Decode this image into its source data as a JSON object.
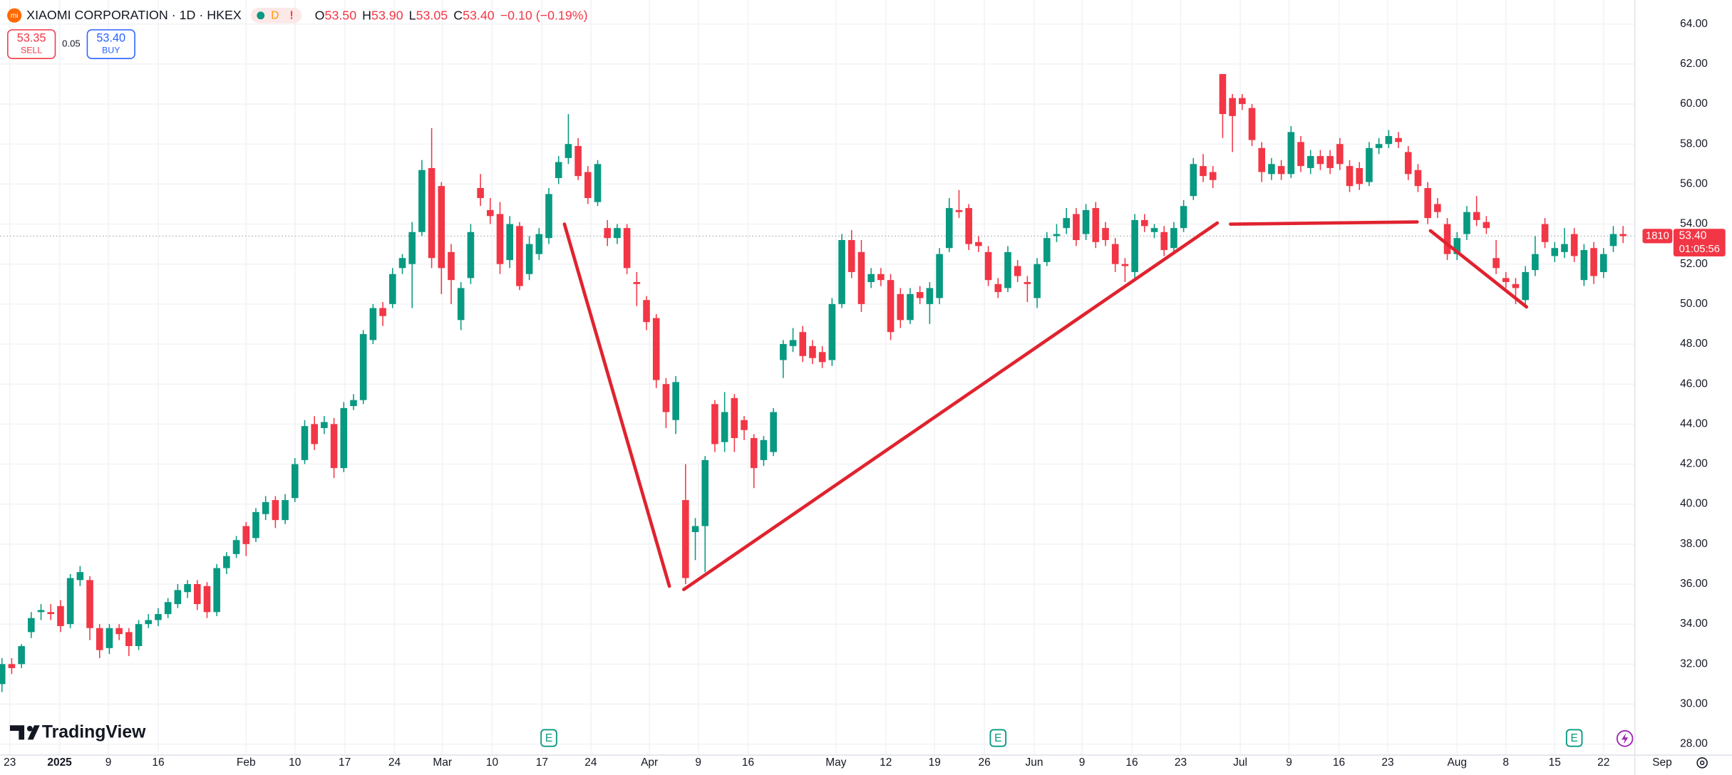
{
  "header": {
    "logo": "mi",
    "title": "XIAOMI CORPORATION · 1D · HKEX",
    "interval_badge": "D",
    "alert_badge": "!",
    "ohlc": [
      {
        "label": "O",
        "value": "53.50"
      },
      {
        "label": "H",
        "value": "53.90"
      },
      {
        "label": "L",
        "value": "53.05"
      },
      {
        "label": "C",
        "value": "53.40"
      }
    ],
    "change": "−0.10 (−0.19%)",
    "sell_price": "53.35",
    "sell_label": "SELL",
    "spread": "0.05",
    "buy_price": "53.40",
    "buy_label": "BUY"
  },
  "brand": "TradingView",
  "price_tag": {
    "symbol": "1810",
    "price": "53.40",
    "countdown": "01:05:56"
  },
  "chart_data": {
    "type": "candlestick",
    "up_color": "#089981",
    "down_color": "#f23645",
    "grid": true,
    "xlim": [
      -0.2,
      167.2
    ],
    "ylim": [
      27.45,
      65.2
    ],
    "yticks": [
      {
        "value": 28,
        "label": "28.00"
      },
      {
        "value": 30,
        "label": "30.00"
      },
      {
        "value": 32,
        "label": "32.00"
      },
      {
        "value": 34,
        "label": "34.00"
      },
      {
        "value": 36,
        "label": "36.00"
      },
      {
        "value": 38,
        "label": "38.00"
      },
      {
        "value": 40,
        "label": "40.00"
      },
      {
        "value": 42,
        "label": "42.00"
      },
      {
        "value": 44,
        "label": "44.00"
      },
      {
        "value": 46,
        "label": "46.00"
      },
      {
        "value": 48,
        "label": "48.00"
      },
      {
        "value": 50,
        "label": "50.00"
      },
      {
        "value": 52,
        "label": "52.00"
      },
      {
        "value": 54,
        "label": "54.00"
      },
      {
        "value": 56,
        "label": "56.00"
      },
      {
        "value": 58,
        "label": "58.00"
      },
      {
        "value": 60,
        "label": "60.00"
      },
      {
        "value": 62,
        "label": "62.00"
      },
      {
        "value": 64,
        "label": "64.00"
      }
    ],
    "xticks": [
      {
        "value": 0.8,
        "label": "23"
      },
      {
        "value": 5.9,
        "label": "2025"
      },
      {
        "value": 10.9,
        "label": "9"
      },
      {
        "value": 16,
        "label": "16"
      },
      {
        "value": 25,
        "label": "Feb"
      },
      {
        "value": 30,
        "label": "10"
      },
      {
        "value": 35.1,
        "label": "17"
      },
      {
        "value": 40.2,
        "label": "24"
      },
      {
        "value": 45.1,
        "label": "Mar"
      },
      {
        "value": 50.2,
        "label": "10"
      },
      {
        "value": 55.3,
        "label": "17"
      },
      {
        "value": 60.3,
        "label": "24"
      },
      {
        "value": 66.3,
        "label": "Apr"
      },
      {
        "value": 71.3,
        "label": "9"
      },
      {
        "value": 76.4,
        "label": "16"
      },
      {
        "value": 85.4,
        "label": "May"
      },
      {
        "value": 90.5,
        "label": "12"
      },
      {
        "value": 95.5,
        "label": "19"
      },
      {
        "value": 100.6,
        "label": "26"
      },
      {
        "value": 105.7,
        "label": "Jun"
      },
      {
        "value": 110.6,
        "label": "9"
      },
      {
        "value": 115.7,
        "label": "16"
      },
      {
        "value": 120.7,
        "label": "23"
      },
      {
        "value": 126.8,
        "label": "Jul"
      },
      {
        "value": 131.8,
        "label": "9"
      },
      {
        "value": 136.9,
        "label": "16"
      },
      {
        "value": 141.9,
        "label": "23"
      },
      {
        "value": 149,
        "label": "Aug"
      },
      {
        "value": 154,
        "label": "8"
      },
      {
        "value": 159,
        "label": "15"
      },
      {
        "value": 164,
        "label": "22"
      },
      {
        "value": 170,
        "label": "Sep"
      }
    ],
    "events": [
      {
        "label": "E",
        "x": 56
      },
      {
        "label": "E",
        "x": 102
      },
      {
        "label": "E",
        "x": 161
      }
    ],
    "open": [
      31,
      32,
      32,
      33.6,
      34.6,
      34.6,
      34.9,
      34,
      36.2,
      36.2,
      33.8,
      32.8,
      33.8,
      33.6,
      32.9,
      34,
      34.2,
      34.5,
      35,
      35.6,
      36,
      35.9,
      34.6,
      36.8,
      37.5,
      38.9,
      38.3,
      39.5,
      40.2,
      39.2,
      40.3,
      42.2,
      44,
      43.8,
      44,
      41.8,
      44.9,
      45.2,
      48.2,
      49.8,
      50,
      51.8,
      52,
      53.6,
      56.8,
      55.9,
      52.6,
      49.2,
      51.3,
      55.8,
      54.7,
      54.5,
      52.2,
      53.9,
      51.5,
      52.5,
      53.3,
      56.3,
      57.3,
      57.9,
      56.6,
      55.1,
      53.8,
      53.3,
      53.8,
      51.1,
      50.2,
      49.3,
      46,
      44.2,
      40.2,
      38.6,
      38.9,
      45,
      43.1,
      45.3,
      44.2,
      43.3,
      42.2,
      42.6,
      47.2,
      47.9,
      48.6,
      47.9,
      47.6,
      47.2,
      50,
      53.2,
      52.6,
      51.1,
      51.5,
      51.2,
      50.5,
      49.2,
      50.6,
      50,
      50.3,
      52.8,
      54.7,
      54.8,
      53.1,
      52.6,
      51,
      50.8,
      51.9,
      51.1,
      50.3,
      52.1,
      53.4,
      53.8,
      54.5,
      53.5,
      54.8,
      53.8,
      53,
      52,
      51.6,
      54.2,
      53.6,
      53.6,
      52.8,
      53.8,
      55.4,
      56.9,
      56.6,
      61.5,
      60.3,
      60.3,
      59.8,
      57.8,
      56.5,
      56.9,
      56.5,
      58.1,
      56.8,
      57.4,
      57.4,
      58,
      56.9,
      56.8,
      56.1,
      57.8,
      58,
      58.3,
      57.6,
      56.7,
      55.8,
      55,
      54,
      52.5,
      53.5,
      54.6,
      54.1,
      52.3,
      51.3,
      51,
      50.2,
      51.7,
      54,
      52.4,
      52.6,
      53.5,
      51.2,
      52.8,
      51.6,
      52.9,
      53.5
    ],
    "high": [
      32.3,
      32.3,
      33,
      34.6,
      35,
      35,
      35.2,
      36.5,
      36.9,
      36.4,
      34,
      34,
      34,
      33.8,
      34.2,
      34.5,
      34.8,
      35.3,
      36,
      36.2,
      36.2,
      36.1,
      37,
      37.6,
      38.4,
      39.1,
      39.8,
      40.4,
      40.4,
      40.5,
      42.3,
      44.2,
      44.4,
      44.4,
      44.3,
      45.1,
      45.5,
      48.7,
      50,
      50.1,
      51.8,
      52.5,
      54.1,
      57.2,
      58.8,
      56.1,
      53,
      51.1,
      54,
      56.5,
      55.3,
      55.1,
      54.4,
      54.1,
      53.4,
      53.8,
      55.8,
      57.4,
      59.5,
      58.3,
      56.9,
      57.2,
      54.2,
      54,
      54,
      51.6,
      50.4,
      49.5,
      46.3,
      46.4,
      42,
      39.3,
      42.4,
      45.2,
      45.6,
      45.5,
      44.4,
      43.5,
      43.4,
      44.8,
      48.2,
      48.8,
      48.9,
      48.2,
      47.9,
      50.3,
      53.5,
      53.7,
      53.2,
      51.8,
      51.8,
      51.5,
      50.8,
      50.8,
      50.9,
      51.1,
      52.8,
      55.3,
      55.7,
      55,
      53.4,
      52.9,
      51.3,
      52.9,
      52.2,
      51.4,
      52.3,
      53.6,
      54,
      54.8,
      54.8,
      55,
      55.1,
      54.1,
      53.3,
      52.3,
      54.5,
      54.5,
      54,
      53.9,
      54.1,
      55.2,
      57.3,
      57.5,
      56.9,
      61.5,
      60.5,
      60.5,
      60,
      58.1,
      57.3,
      57.2,
      58.9,
      58.4,
      57.7,
      57.7,
      57.7,
      58.3,
      57.2,
      57.1,
      58.1,
      58.3,
      58.7,
      58.6,
      57.9,
      57,
      56.1,
      55.3,
      54.3,
      53.6,
      54.9,
      55.4,
      54.4,
      53.2,
      51.6,
      51.3,
      51.9,
      53.4,
      54.3,
      53.1,
      53.8,
      53.8,
      53,
      53.1,
      52.8,
      53.9,
      53.9
    ],
    "low": [
      30.6,
      31.5,
      31.8,
      33.3,
      34.2,
      34.2,
      33.6,
      33.8,
      35.9,
      33.2,
      32.3,
      32.5,
      33.2,
      32.4,
      32.7,
      33.8,
      33.9,
      34.3,
      34.8,
      35.3,
      34.7,
      34.3,
      34.4,
      36.5,
      37.3,
      37.4,
      38.1,
      39.2,
      38.8,
      39,
      40.1,
      42,
      42.7,
      43.5,
      41.3,
      41.6,
      44.7,
      45,
      48,
      48.9,
      49.8,
      51.5,
      49.8,
      53.4,
      51.8,
      50.5,
      50,
      48.7,
      51,
      54.9,
      54,
      51.5,
      51.8,
      50.7,
      51.2,
      52.2,
      53,
      56,
      57,
      56.2,
      55,
      54.9,
      52.9,
      53,
      51.5,
      49.9,
      48.7,
      45.8,
      43.8,
      43.5,
      36,
      37.2,
      36.6,
      42.6,
      42.6,
      42.6,
      43.2,
      40.8,
      41.9,
      42.4,
      46.3,
      47.6,
      47.1,
      47,
      46.8,
      46.9,
      49.8,
      51.3,
      49.6,
      50.8,
      50.9,
      48.2,
      48.8,
      49,
      50,
      49,
      50,
      52.6,
      54.3,
      52.7,
      52.6,
      50.9,
      50.3,
      50.6,
      51.1,
      50.1,
      49.8,
      51.9,
      53.1,
      53.5,
      52.9,
      53.2,
      52.8,
      52.9,
      51.6,
      51.1,
      51.2,
      53.6,
      53.3,
      52.4,
      52.5,
      53.6,
      55.2,
      56.1,
      55.8,
      58.3,
      57.6,
      59.7,
      57.9,
      56.1,
      56.2,
      56.2,
      56.3,
      56.6,
      56.5,
      56.7,
      56.5,
      56.7,
      55.6,
      55.7,
      55.9,
      57.5,
      57.8,
      57.8,
      56.2,
      55.6,
      54,
      54.3,
      52.2,
      52.2,
      53.2,
      53.9,
      53.5,
      51.5,
      50.8,
      50,
      49.9,
      51.4,
      52.8,
      52.1,
      52.3,
      52.1,
      50.9,
      51,
      51.3,
      52.6,
      53.05
    ],
    "close": [
      32,
      31.8,
      32.9,
      34.3,
      34.7,
      34.5,
      33.9,
      36.3,
      36.6,
      33.8,
      32.7,
      33.8,
      33.5,
      32.9,
      34,
      34.2,
      34.5,
      35.1,
      35.7,
      36,
      35,
      34.6,
      36.8,
      37.4,
      38.2,
      38,
      39.6,
      40.1,
      39.2,
      40.2,
      42,
      43.9,
      43,
      44.1,
      41.8,
      44.8,
      45.2,
      48.5,
      49.8,
      49.4,
      51.5,
      52.3,
      53.6,
      56.7,
      52.3,
      51.8,
      51.2,
      50.8,
      53.6,
      55.3,
      54.4,
      52,
      54,
      50.9,
      53,
      53.5,
      55.5,
      57.1,
      58,
      56.4,
      55.3,
      57,
      53.3,
      53.8,
      51.8,
      51,
      49.1,
      46.2,
      44.6,
      46.1,
      36.3,
      38.9,
      42.2,
      43,
      44.6,
      43.3,
      43.7,
      41.8,
      43.2,
      44.6,
      48,
      48.2,
      47.4,
      47.3,
      47.1,
      50,
      53.2,
      51.6,
      50,
      51.5,
      51.2,
      48.6,
      49.2,
      50.5,
      50.3,
      50.8,
      52.5,
      54.8,
      54.6,
      53,
      52.9,
      51.2,
      50.6,
      52.6,
      51.4,
      51,
      52,
      53.3,
      53.5,
      54.3,
      53.2,
      54.7,
      53.1,
      53.2,
      52,
      51.9,
      54.2,
      53.9,
      53.8,
      52.7,
      53.8,
      54.9,
      57,
      56.4,
      56.2,
      59.5,
      59.4,
      60,
      58.2,
      56.6,
      57,
      56.5,
      58.6,
      56.9,
      57.4,
      57,
      56.8,
      57,
      55.9,
      56,
      57.8,
      58,
      58.4,
      58.1,
      56.5,
      55.9,
      54.3,
      54.6,
      52.5,
      53.3,
      54.6,
      54.2,
      53.8,
      51.8,
      51.1,
      50.8,
      51.6,
      52.5,
      53.1,
      52.8,
      53,
      52.4,
      52.7,
      51.4,
      52.5,
      53.5,
      53.4
    ]
  }
}
